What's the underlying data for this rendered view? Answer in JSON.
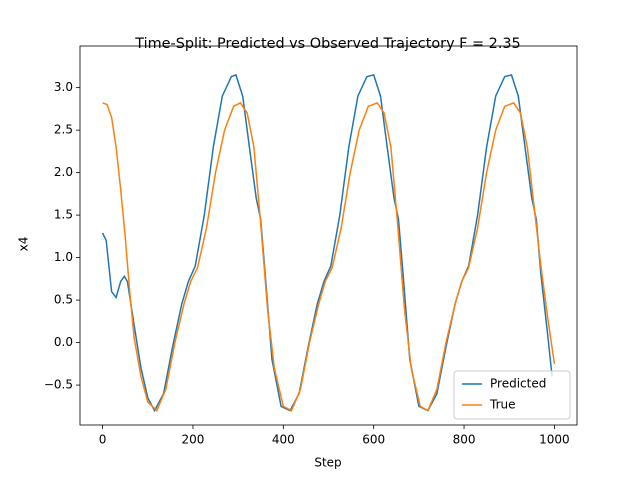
{
  "chart_data": {
    "type": "line",
    "title": "Time-Split: Predicted vs Observed Trajectory F = 2.35",
    "x_label": "Step",
    "y_label": "x4",
    "xlim": [
      -50,
      1050
    ],
    "ylim": [
      -0.97,
      3.49
    ],
    "xticks": [
      0,
      200,
      400,
      600,
      800,
      1000
    ],
    "yticks": [
      {
        "value": -0.5,
        "label": "−0.5"
      },
      {
        "value": 0,
        "label": "0.0"
      },
      0.5,
      {
        "value": 1,
        "label": "1.0"
      },
      1.5,
      {
        "value": 2,
        "label": "2.0"
      },
      2.5,
      {
        "value": 3,
        "label": "3.0"
      }
    ],
    "legend": "lower right",
    "series": [
      {
        "name": "Predicted",
        "color": "#1f77b4",
        "x": [
          0,
          8,
          20,
          30,
          40,
          48,
          55,
          70,
          85,
          100,
          115,
          135,
          155,
          175,
          190,
          205,
          225,
          245,
          265,
          285,
          295,
          310,
          325,
          340,
          350,
          360,
          375,
          395,
          415,
          435,
          455,
          475,
          490,
          505,
          525,
          545,
          565,
          585,
          600,
          615,
          630,
          645,
          655,
          665,
          680,
          700,
          720,
          740,
          760,
          780,
          795,
          810,
          830,
          850,
          870,
          890,
          905,
          920,
          935,
          950,
          960,
          970,
          985,
          995
        ],
        "values": [
          1.29,
          1.2,
          0.6,
          0.53,
          0.72,
          0.78,
          0.72,
          0.2,
          -0.3,
          -0.65,
          -0.8,
          -0.6,
          -0.05,
          0.45,
          0.72,
          0.9,
          1.5,
          2.3,
          2.9,
          3.13,
          3.15,
          2.9,
          2.3,
          1.7,
          1.45,
          0.8,
          -0.2,
          -0.75,
          -0.8,
          -0.6,
          -0.05,
          0.45,
          0.72,
          0.9,
          1.5,
          2.3,
          2.9,
          3.13,
          3.15,
          2.9,
          2.3,
          1.7,
          1.45,
          0.8,
          -0.2,
          -0.75,
          -0.8,
          -0.6,
          -0.05,
          0.45,
          0.72,
          0.9,
          1.5,
          2.3,
          2.9,
          3.13,
          3.15,
          2.9,
          2.3,
          1.7,
          1.45,
          0.8,
          0.1,
          -0.4
        ]
      },
      {
        "name": "True",
        "color": "#ff7f0e",
        "x": [
          0,
          10,
          20,
          30,
          40,
          50,
          60,
          70,
          85,
          100,
          120,
          140,
          160,
          180,
          195,
          210,
          230,
          250,
          270,
          290,
          305,
          320,
          335,
          350,
          365,
          380,
          400,
          418,
          438,
          458,
          478,
          493,
          508,
          528,
          548,
          568,
          588,
          608,
          623,
          638,
          653,
          668,
          683,
          703,
          720,
          740,
          760,
          780,
          795,
          810,
          830,
          850,
          870,
          890,
          910,
          925,
          940,
          955,
          970,
          985,
          1000
        ],
        "values": [
          2.82,
          2.8,
          2.65,
          2.3,
          1.8,
          1.25,
          0.6,
          0.05,
          -0.4,
          -0.7,
          -0.8,
          -0.55,
          0,
          0.45,
          0.72,
          0.88,
          1.35,
          2,
          2.5,
          2.78,
          2.82,
          2.7,
          2.3,
          1.4,
          0.4,
          -0.3,
          -0.75,
          -0.8,
          -0.55,
          0,
          0.45,
          0.72,
          0.88,
          1.35,
          2,
          2.5,
          2.78,
          2.82,
          2.7,
          2.3,
          1.4,
          0.4,
          -0.3,
          -0.75,
          -0.8,
          -0.55,
          0,
          0.45,
          0.72,
          0.88,
          1.35,
          2,
          2.5,
          2.78,
          2.82,
          2.7,
          2.3,
          1.6,
          0.9,
          0.3,
          -0.25
        ]
      }
    ]
  }
}
